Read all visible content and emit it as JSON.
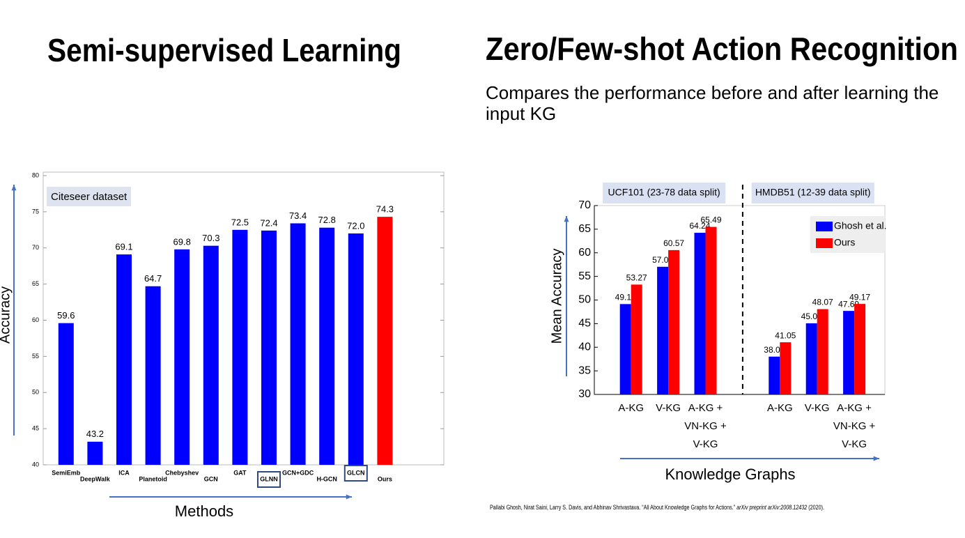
{
  "chart_data": [
    {
      "type": "bar",
      "title": "Semi-supervised Learning",
      "annotation": "Citeseer dataset",
      "x_label": "Methods",
      "y_label": "Accuracy",
      "categories": [
        "SemiEmb",
        "DeepWalk",
        "ICA",
        "Planetoid",
        "Chebyshev",
        "GCN",
        "GAT",
        "GLNN",
        "GCN+GDC",
        "H-GCN",
        "GLCN",
        "Ours"
      ],
      "values": [
        59.6,
        43.2,
        69.1,
        64.7,
        69.8,
        70.3,
        72.5,
        72.4,
        73.4,
        72.8,
        72.0,
        74.3
      ],
      "value_labels": [
        "59.6",
        "43.2",
        "69.1",
        "64.7",
        "69.8",
        "70.3",
        "72.5",
        "72.4",
        "73.4",
        "72.8",
        "72.0",
        "74.3"
      ],
      "colors": [
        "#0000ff",
        "#0000ff",
        "#0000ff",
        "#0000ff",
        "#0000ff",
        "#0000ff",
        "#0000ff",
        "#0000ff",
        "#0000ff",
        "#0000ff",
        "#0000ff",
        "#ff0000"
      ],
      "boxed": [
        7,
        10
      ],
      "ylim": [
        40,
        80
      ],
      "yticks": [
        40,
        45,
        50,
        55,
        60,
        65,
        70,
        75,
        80
      ],
      "grid": false
    },
    {
      "type": "bar",
      "title": "Zero/Few-shot Action Recognition",
      "subtitle": "Compares the performance before and after learning the input KG",
      "x_label": "Knowledge Graphs",
      "y_label": "Mean Accuracy",
      "groups": [
        "UCF101 (23-78 data split)",
        "HMDB51 (12-39 data split)"
      ],
      "group_size": 3,
      "categories": [
        "A-KG",
        "V-KG",
        "A-KG +\nVN-KG +\nV-KG",
        "A-KG",
        "V-KG",
        "A-KG +\nVN-KG +\nV-KG"
      ],
      "series": [
        {
          "name": "Ghosh et al.",
          "color": "#0000ff",
          "values": [
            49.14,
            57.04,
            64.24,
            38.01,
            45.07,
            47.69
          ]
        },
        {
          "name": "Ours",
          "color": "#ff0000",
          "values": [
            53.27,
            60.57,
            65.49,
            41.05,
            48.07,
            49.17
          ]
        }
      ],
      "legend": "upper right",
      "ylim": [
        30,
        70
      ],
      "yticks": [
        30,
        35,
        40,
        45,
        50,
        55,
        60,
        65,
        70
      ],
      "grid": false
    }
  ],
  "citation": {
    "authors": "Pallabi Ghosh, Nirat Saini, Larry S. Davis, and Abhinav Shrivastava.",
    "paper": "“All About Knowledge Graphs for Actions.”",
    "venue": "arXiv preprint arXiv:2008.12432",
    "year": "(2020)."
  }
}
